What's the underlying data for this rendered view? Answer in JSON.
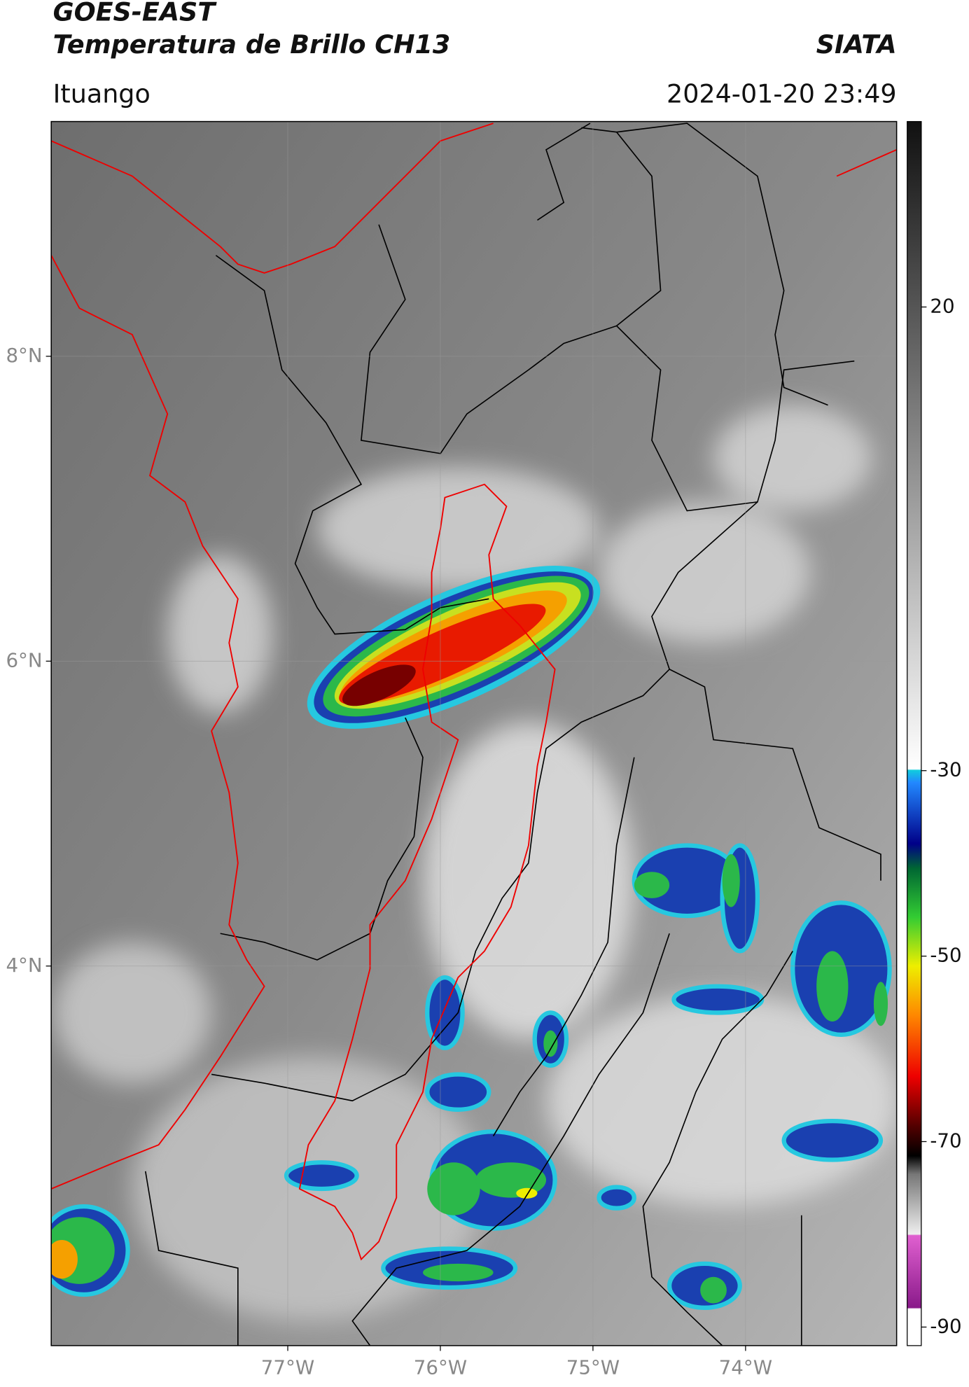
{
  "header": {
    "title": "GOES-EAST",
    "subtitle": "Temperatura de Brillo CH13",
    "brand": "SIATA",
    "location": "Ituango",
    "datetime": "2024-01-20 23:49"
  },
  "map": {
    "xlim": [
      -78.55,
      -73.01
    ],
    "ylim": [
      1.51,
      9.54
    ],
    "xticks": [
      {
        "value": -77,
        "label": "77°W"
      },
      {
        "value": -76,
        "label": "76°W"
      },
      {
        "value": -75,
        "label": "75°W"
      },
      {
        "value": -74,
        "label": "74°W"
      }
    ],
    "yticks": [
      {
        "value": 8,
        "label": "8°N"
      },
      {
        "value": 6,
        "label": "6°N"
      },
      {
        "value": 4,
        "label": "4°N"
      }
    ],
    "grid": true
  },
  "colorbar": {
    "clim": [
      -92,
      40
    ],
    "ticks": [
      -90,
      -70,
      -50,
      -30,
      20
    ]
  }
}
